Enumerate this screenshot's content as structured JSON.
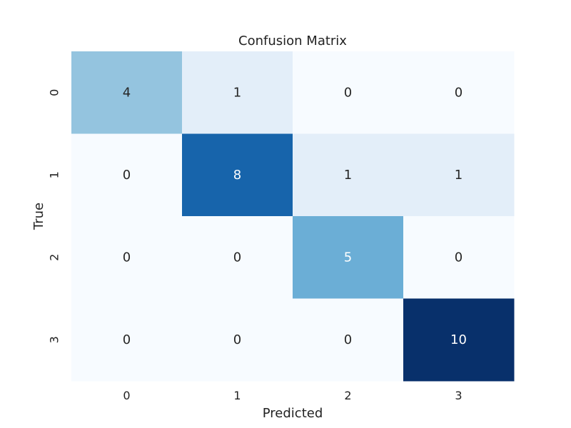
{
  "chart_data": {
    "type": "heatmap",
    "title": "Confusion Matrix",
    "xlabel": "Predicted",
    "ylabel": "True",
    "x_categories": [
      "0",
      "1",
      "2",
      "3"
    ],
    "y_categories": [
      "0",
      "1",
      "2",
      "3"
    ],
    "values": [
      [
        4,
        1,
        0,
        0
      ],
      [
        0,
        8,
        1,
        1
      ],
      [
        0,
        0,
        5,
        0
      ],
      [
        0,
        0,
        0,
        10
      ]
    ],
    "value_range": [
      0,
      10
    ],
    "colormap": "Blues",
    "colors": {
      "low": "#f7fbff",
      "high": "#08306b",
      "text_dark": "#262626",
      "text_light": "#ffffff"
    },
    "colorbar": false,
    "grid": false
  }
}
